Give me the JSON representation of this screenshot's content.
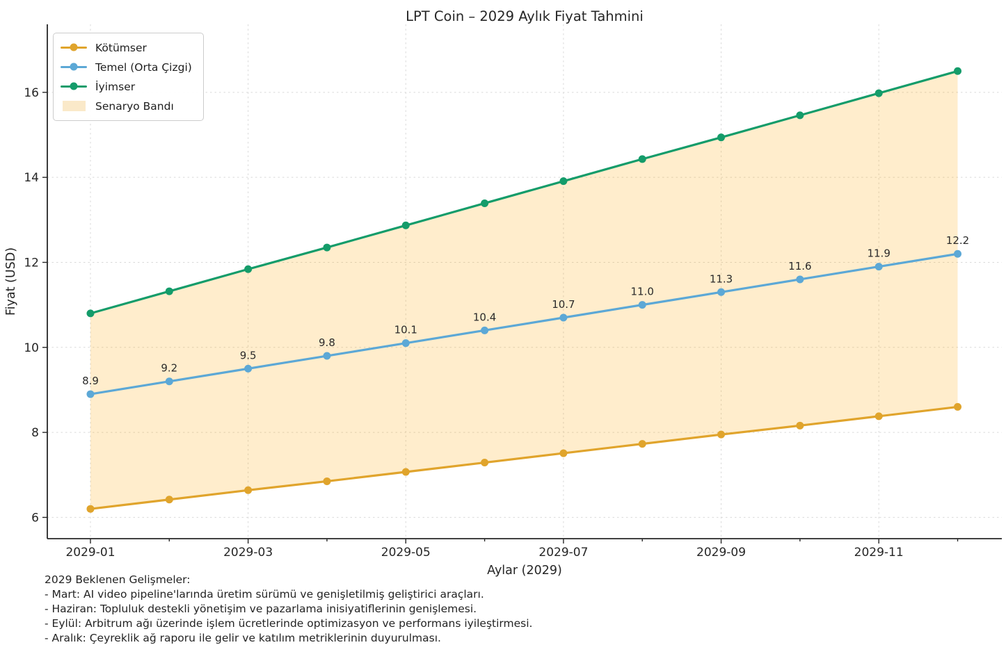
{
  "chart_data": {
    "type": "line",
    "title": "LPT Coin – 2029 Aylık Fiyat Tahmini",
    "xlabel": "Aylar (2029)",
    "ylabel": "Fiyat (USD)",
    "x": [
      "2029-01",
      "2029-02",
      "2029-03",
      "2029-04",
      "2029-05",
      "2029-06",
      "2029-07",
      "2029-08",
      "2029-09",
      "2029-10",
      "2029-11",
      "2029-12"
    ],
    "x_tick_labels": [
      "2029-01",
      "2029-03",
      "2029-05",
      "2029-07",
      "2029-09",
      "2029-11"
    ],
    "y_ticks": [
      6,
      8,
      10,
      12,
      14,
      16
    ],
    "ylim": [
      5.5,
      17.6
    ],
    "grid": true,
    "legend_position": "upper left",
    "series": [
      {
        "name": "Kötümser",
        "color": "#E0A42C",
        "values": [
          6.2,
          6.42,
          6.64,
          6.85,
          7.07,
          7.29,
          7.51,
          7.73,
          7.95,
          8.16,
          8.38,
          8.6
        ],
        "point_labels_shown": false
      },
      {
        "name": "Temel (Orta Çizgi)",
        "color": "#5CA8D6",
        "values": [
          8.9,
          9.2,
          9.5,
          9.8,
          10.1,
          10.4,
          10.7,
          11.0,
          11.3,
          11.6,
          11.9,
          12.2
        ],
        "point_labels_shown": true,
        "point_labels": [
          "8.9",
          "9.2",
          "9.5",
          "9.8",
          "10.1",
          "10.4",
          "10.7",
          "11.0",
          "11.3",
          "11.6",
          "11.9",
          "12.2"
        ]
      },
      {
        "name": "İyimser",
        "color": "#149C6A",
        "values": [
          10.8,
          11.32,
          11.84,
          12.35,
          12.87,
          13.39,
          13.91,
          14.43,
          14.94,
          15.46,
          15.98,
          16.5
        ],
        "point_labels_shown": false
      }
    ],
    "band": {
      "label": "Senaryo Bandı",
      "fill_color": "#FFA500",
      "fill_opacity": 0.2,
      "rendered_color": "#FAE9C9",
      "between": [
        "Kötümser",
        "İyimser"
      ]
    },
    "annotation": {
      "heading": "2029 Beklenen Gelişmeler:",
      "lines": [
        "- Mart: AI video pipeline'larında üretim sürümü ve genişletilmiş geliştirici araçları.",
        "- Haziran: Topluluk destekli yönetişim ve pazarlama inisiyatiflerinin genişlemesi.",
        "- Eylül: Arbitrum ağı üzerinde işlem ücretlerinde optimizasyon ve performans iyileştirmesi.",
        "- Aralık: Çeyreklik ağ raporu ile gelir ve katılım metriklerinin duyurulması."
      ]
    },
    "style_colors": {
      "grid": "#d9d9d9",
      "axis": "#262626",
      "text": "#262626",
      "point_label_text": "#2b2b2b"
    }
  }
}
